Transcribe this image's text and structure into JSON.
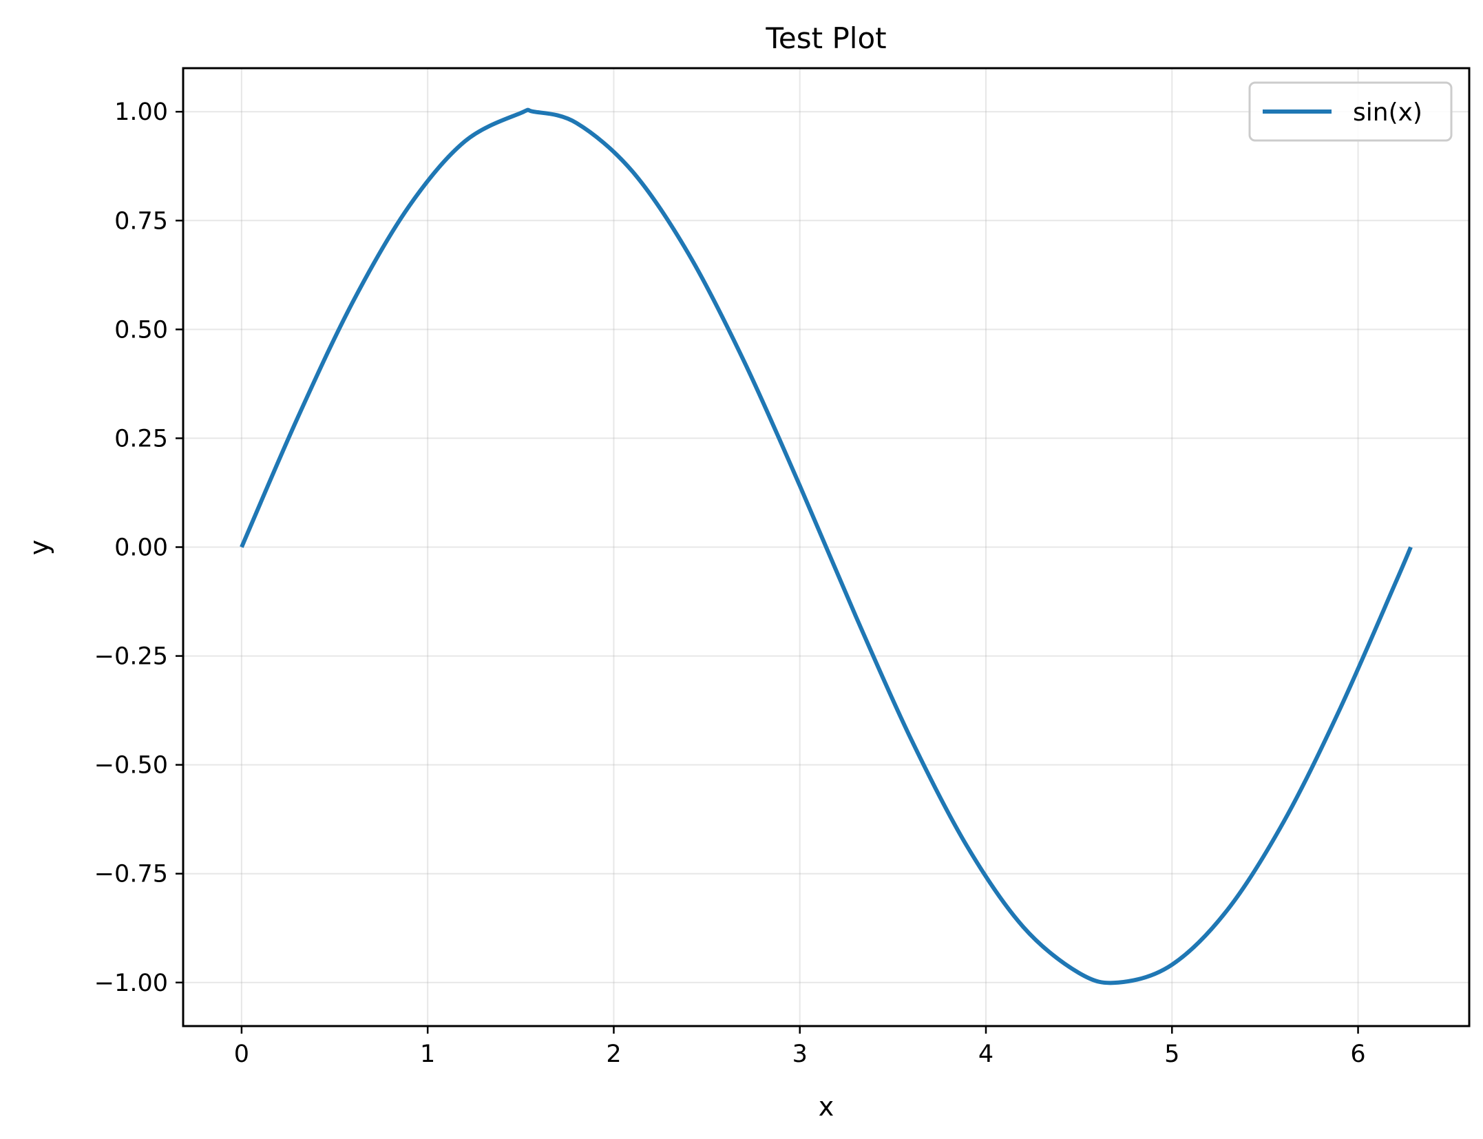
{
  "chart_data": {
    "type": "line",
    "title": "Test Plot",
    "xlabel": "x",
    "ylabel": "y",
    "xlim": [
      -0.3141592653589793,
      6.5973445725385655
    ],
    "ylim": [
      -1.1,
      1.1
    ],
    "xticks": [
      0,
      1,
      2,
      3,
      4,
      5,
      6
    ],
    "xtick_labels": [
      "0",
      "1",
      "2",
      "3",
      "4",
      "5",
      "6"
    ],
    "yticks": [
      1.0,
      0.75,
      0.5,
      0.25,
      0.0,
      -0.25,
      -0.5,
      -0.75,
      -1.0
    ],
    "ytick_labels": [
      "1.00",
      "0.75",
      "0.50",
      "0.25",
      "0.00",
      "−0.25",
      "−0.50",
      "−0.75",
      "−1.00"
    ],
    "grid": true,
    "legend_position": "top-right",
    "series": [
      {
        "name": "sin(x)",
        "color": "#1f77b4",
        "x": [
          0.0,
          0.3,
          0.6,
          0.9,
          1.2,
          1.5,
          1.5708,
          1.8,
          2.1,
          2.4,
          2.7,
          3.0,
          3.3,
          3.6,
          3.9,
          4.2,
          4.5,
          4.7124,
          5.0,
          5.3,
          5.6,
          5.9,
          6.2,
          6.2832
        ],
        "y": [
          0.0,
          0.296,
          0.565,
          0.783,
          0.932,
          0.997,
          1.0,
          0.974,
          0.863,
          0.675,
          0.427,
          0.141,
          -0.158,
          -0.443,
          -0.688,
          -0.872,
          -0.978,
          -1.0,
          -0.959,
          -0.832,
          -0.631,
          -0.374,
          -0.083,
          0.0
        ]
      }
    ]
  }
}
